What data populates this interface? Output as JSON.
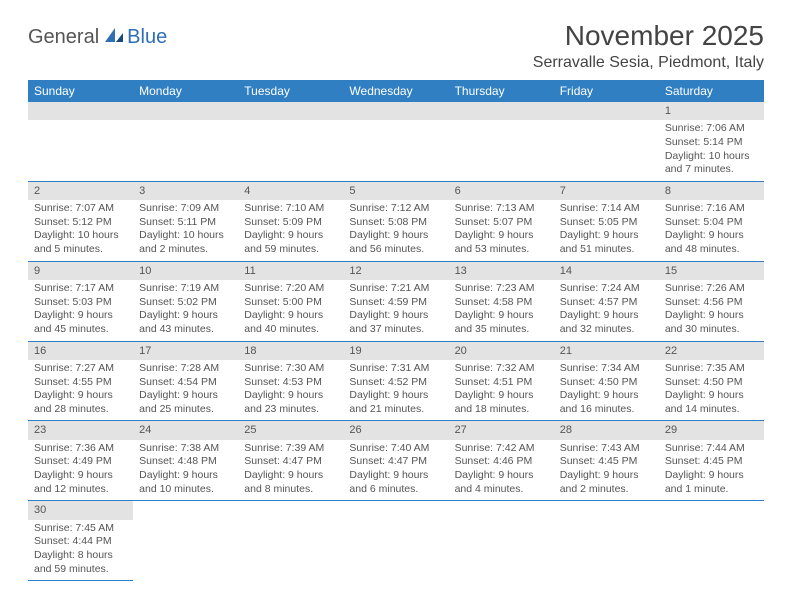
{
  "logo": {
    "general": "General",
    "blue": "Blue"
  },
  "title": "November 2025",
  "location": "Serravalle Sesia, Piedmont, Italy",
  "colors": {
    "header_bg": "#2f7fc2",
    "header_text": "#ffffff",
    "daynum_bg": "#e3e3e3",
    "text": "#555555",
    "row_border": "#2f7fc2",
    "logo_blue": "#2f6fb3"
  },
  "day_names": [
    "Sunday",
    "Monday",
    "Tuesday",
    "Wednesday",
    "Thursday",
    "Friday",
    "Saturday"
  ],
  "weeks": [
    [
      null,
      null,
      null,
      null,
      null,
      null,
      {
        "n": "1",
        "sr": "Sunrise: 7:06 AM",
        "ss": "Sunset: 5:14 PM",
        "d1": "Daylight: 10 hours",
        "d2": "and 7 minutes."
      }
    ],
    [
      {
        "n": "2",
        "sr": "Sunrise: 7:07 AM",
        "ss": "Sunset: 5:12 PM",
        "d1": "Daylight: 10 hours",
        "d2": "and 5 minutes."
      },
      {
        "n": "3",
        "sr": "Sunrise: 7:09 AM",
        "ss": "Sunset: 5:11 PM",
        "d1": "Daylight: 10 hours",
        "d2": "and 2 minutes."
      },
      {
        "n": "4",
        "sr": "Sunrise: 7:10 AM",
        "ss": "Sunset: 5:09 PM",
        "d1": "Daylight: 9 hours",
        "d2": "and 59 minutes."
      },
      {
        "n": "5",
        "sr": "Sunrise: 7:12 AM",
        "ss": "Sunset: 5:08 PM",
        "d1": "Daylight: 9 hours",
        "d2": "and 56 minutes."
      },
      {
        "n": "6",
        "sr": "Sunrise: 7:13 AM",
        "ss": "Sunset: 5:07 PM",
        "d1": "Daylight: 9 hours",
        "d2": "and 53 minutes."
      },
      {
        "n": "7",
        "sr": "Sunrise: 7:14 AM",
        "ss": "Sunset: 5:05 PM",
        "d1": "Daylight: 9 hours",
        "d2": "and 51 minutes."
      },
      {
        "n": "8",
        "sr": "Sunrise: 7:16 AM",
        "ss": "Sunset: 5:04 PM",
        "d1": "Daylight: 9 hours",
        "d2": "and 48 minutes."
      }
    ],
    [
      {
        "n": "9",
        "sr": "Sunrise: 7:17 AM",
        "ss": "Sunset: 5:03 PM",
        "d1": "Daylight: 9 hours",
        "d2": "and 45 minutes."
      },
      {
        "n": "10",
        "sr": "Sunrise: 7:19 AM",
        "ss": "Sunset: 5:02 PM",
        "d1": "Daylight: 9 hours",
        "d2": "and 43 minutes."
      },
      {
        "n": "11",
        "sr": "Sunrise: 7:20 AM",
        "ss": "Sunset: 5:00 PM",
        "d1": "Daylight: 9 hours",
        "d2": "and 40 minutes."
      },
      {
        "n": "12",
        "sr": "Sunrise: 7:21 AM",
        "ss": "Sunset: 4:59 PM",
        "d1": "Daylight: 9 hours",
        "d2": "and 37 minutes."
      },
      {
        "n": "13",
        "sr": "Sunrise: 7:23 AM",
        "ss": "Sunset: 4:58 PM",
        "d1": "Daylight: 9 hours",
        "d2": "and 35 minutes."
      },
      {
        "n": "14",
        "sr": "Sunrise: 7:24 AM",
        "ss": "Sunset: 4:57 PM",
        "d1": "Daylight: 9 hours",
        "d2": "and 32 minutes."
      },
      {
        "n": "15",
        "sr": "Sunrise: 7:26 AM",
        "ss": "Sunset: 4:56 PM",
        "d1": "Daylight: 9 hours",
        "d2": "and 30 minutes."
      }
    ],
    [
      {
        "n": "16",
        "sr": "Sunrise: 7:27 AM",
        "ss": "Sunset: 4:55 PM",
        "d1": "Daylight: 9 hours",
        "d2": "and 28 minutes."
      },
      {
        "n": "17",
        "sr": "Sunrise: 7:28 AM",
        "ss": "Sunset: 4:54 PM",
        "d1": "Daylight: 9 hours",
        "d2": "and 25 minutes."
      },
      {
        "n": "18",
        "sr": "Sunrise: 7:30 AM",
        "ss": "Sunset: 4:53 PM",
        "d1": "Daylight: 9 hours",
        "d2": "and 23 minutes."
      },
      {
        "n": "19",
        "sr": "Sunrise: 7:31 AM",
        "ss": "Sunset: 4:52 PM",
        "d1": "Daylight: 9 hours",
        "d2": "and 21 minutes."
      },
      {
        "n": "20",
        "sr": "Sunrise: 7:32 AM",
        "ss": "Sunset: 4:51 PM",
        "d1": "Daylight: 9 hours",
        "d2": "and 18 minutes."
      },
      {
        "n": "21",
        "sr": "Sunrise: 7:34 AM",
        "ss": "Sunset: 4:50 PM",
        "d1": "Daylight: 9 hours",
        "d2": "and 16 minutes."
      },
      {
        "n": "22",
        "sr": "Sunrise: 7:35 AM",
        "ss": "Sunset: 4:50 PM",
        "d1": "Daylight: 9 hours",
        "d2": "and 14 minutes."
      }
    ],
    [
      {
        "n": "23",
        "sr": "Sunrise: 7:36 AM",
        "ss": "Sunset: 4:49 PM",
        "d1": "Daylight: 9 hours",
        "d2": "and 12 minutes."
      },
      {
        "n": "24",
        "sr": "Sunrise: 7:38 AM",
        "ss": "Sunset: 4:48 PM",
        "d1": "Daylight: 9 hours",
        "d2": "and 10 minutes."
      },
      {
        "n": "25",
        "sr": "Sunrise: 7:39 AM",
        "ss": "Sunset: 4:47 PM",
        "d1": "Daylight: 9 hours",
        "d2": "and 8 minutes."
      },
      {
        "n": "26",
        "sr": "Sunrise: 7:40 AM",
        "ss": "Sunset: 4:47 PM",
        "d1": "Daylight: 9 hours",
        "d2": "and 6 minutes."
      },
      {
        "n": "27",
        "sr": "Sunrise: 7:42 AM",
        "ss": "Sunset: 4:46 PM",
        "d1": "Daylight: 9 hours",
        "d2": "and 4 minutes."
      },
      {
        "n": "28",
        "sr": "Sunrise: 7:43 AM",
        "ss": "Sunset: 4:45 PM",
        "d1": "Daylight: 9 hours",
        "d2": "and 2 minutes."
      },
      {
        "n": "29",
        "sr": "Sunrise: 7:44 AM",
        "ss": "Sunset: 4:45 PM",
        "d1": "Daylight: 9 hours",
        "d2": "and 1 minute."
      }
    ],
    [
      {
        "n": "30",
        "sr": "Sunrise: 7:45 AM",
        "ss": "Sunset: 4:44 PM",
        "d1": "Daylight: 8 hours",
        "d2": "and 59 minutes."
      },
      null,
      null,
      null,
      null,
      null,
      null
    ]
  ]
}
